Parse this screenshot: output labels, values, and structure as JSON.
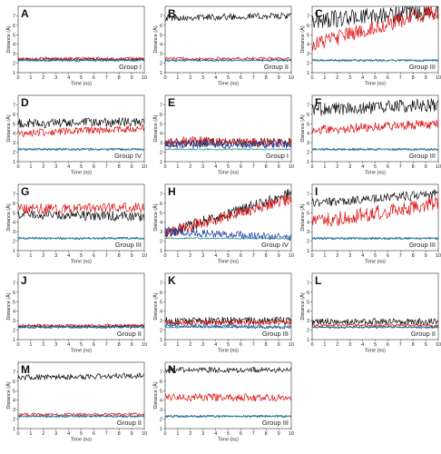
{
  "chart_data": [
    {
      "panel": "A",
      "group_label": "Group I",
      "type": "line",
      "xlabel": "Time (ns)",
      "ylabel": "Distance (Å)",
      "xlim": [
        0,
        10
      ],
      "ylim": [
        1,
        8
      ],
      "x_ticks": [
        "0",
        "1",
        "2",
        "3",
        "4",
        "5",
        "6",
        "7",
        "8",
        "9",
        "10"
      ],
      "y_ticks": [
        "1",
        "2",
        "3",
        "4",
        "5",
        "6",
        "7"
      ],
      "series": [
        {
          "color": "#111111",
          "level": [
            2.4,
            2.4
          ],
          "noise": 0.15
        },
        {
          "color": "#dd1111",
          "level": [
            2.5,
            2.5
          ],
          "noise": 0.15
        },
        {
          "color": "#1f3fa8",
          "level": [
            2.3,
            2.3
          ],
          "noise": 0.12
        },
        {
          "color": "#1a8a8a",
          "level": [
            2.3,
            2.3
          ],
          "noise": 0.08
        }
      ]
    },
    {
      "panel": "B",
      "group_label": "Group II",
      "type": "line",
      "xlabel": "Time (ns)",
      "ylabel": "Distance (Å)",
      "xlim": [
        0,
        10
      ],
      "ylim": [
        1,
        8
      ],
      "x_ticks": [
        "0",
        "1",
        "2",
        "3",
        "4",
        "5",
        "6",
        "7",
        "8",
        "9",
        "10"
      ],
      "y_ticks": [
        "1",
        "2",
        "3",
        "4",
        "5",
        "6",
        "7"
      ],
      "series": [
        {
          "color": "#111111",
          "level": [
            6.8,
            7.0
          ],
          "noise": 0.35
        },
        {
          "color": "#dd1111",
          "level": [
            2.5,
            2.5
          ],
          "noise": 0.15
        },
        {
          "color": "#1f3fa8",
          "level": [
            2.3,
            2.3
          ],
          "noise": 0.12
        },
        {
          "color": "#1a8a8a",
          "level": [
            2.3,
            2.3
          ],
          "noise": 0.08
        }
      ]
    },
    {
      "panel": "C",
      "group_label": "Group III",
      "type": "line",
      "xlabel": "Time (ns)",
      "ylabel": "Distance (Å)",
      "xlim": [
        0,
        10
      ],
      "ylim": [
        1,
        8
      ],
      "x_ticks": [
        "0",
        "1",
        "2",
        "3",
        "4",
        "5",
        "6",
        "7",
        "8",
        "9",
        "10"
      ],
      "y_ticks": [
        "1",
        "2",
        "3",
        "4",
        "5",
        "6",
        "7"
      ],
      "series": [
        {
          "color": "#111111",
          "level": [
            6.5,
            7.5
          ],
          "noise": 0.9
        },
        {
          "color": "#dd1111",
          "level": [
            4.0,
            7.5
          ],
          "noise": 0.8
        },
        {
          "color": "#1f3fa8",
          "level": [
            2.3,
            2.3
          ],
          "noise": 0.12
        },
        {
          "color": "#1a8a8a",
          "level": [
            2.3,
            2.3
          ],
          "noise": 0.08
        }
      ]
    },
    {
      "panel": "D",
      "group_label": "Group IV",
      "type": "line",
      "xlabel": "Time (ns)",
      "ylabel": "Distance (Å)",
      "xlim": [
        0,
        10
      ],
      "ylim": [
        1,
        8
      ],
      "x_ticks": [
        "0",
        "1",
        "2",
        "3",
        "4",
        "5",
        "6",
        "7",
        "8",
        "9",
        "10"
      ],
      "y_ticks": [
        "1",
        "2",
        "3",
        "4",
        "5",
        "6",
        "7"
      ],
      "series": [
        {
          "color": "#111111",
          "level": [
            5.0,
            5.2
          ],
          "noise": 0.5
        },
        {
          "color": "#dd1111",
          "level": [
            4.0,
            4.5
          ],
          "noise": 0.4
        },
        {
          "color": "#1f3fa8",
          "level": [
            2.3,
            2.3
          ],
          "noise": 0.12
        },
        {
          "color": "#1a8a8a",
          "level": [
            2.3,
            2.3
          ],
          "noise": 0.08
        }
      ]
    },
    {
      "panel": "E",
      "group_label": "Group I",
      "type": "line",
      "xlabel": "Time (ns)",
      "ylabel": "Distance (Å)",
      "xlim": [
        0,
        10
      ],
      "ylim": [
        1,
        8
      ],
      "x_ticks": [
        "0",
        "1",
        "2",
        "3",
        "4",
        "5",
        "6",
        "7",
        "8",
        "9",
        "10"
      ],
      "y_ticks": [
        "1",
        "2",
        "3",
        "4",
        "5",
        "6",
        "7"
      ],
      "series": [
        {
          "color": "#111111",
          "level": [
            3.0,
            3.0
          ],
          "noise": 0.5
        },
        {
          "color": "#dd1111",
          "level": [
            3.2,
            3.0
          ],
          "noise": 0.5
        },
        {
          "color": "#1f3fa8",
          "level": [
            2.8,
            2.8
          ],
          "noise": 0.4
        },
        {
          "color": "#1a8a8a",
          "level": [
            2.3,
            2.3
          ],
          "noise": 0.08
        }
      ]
    },
    {
      "panel": "F",
      "group_label": "Group III",
      "type": "line",
      "xlabel": "Time (ns)",
      "ylabel": "Distance (Å)",
      "xlim": [
        0,
        10
      ],
      "ylim": [
        1,
        8
      ],
      "x_ticks": [
        "0",
        "1",
        "2",
        "3",
        "4",
        "5",
        "6",
        "7",
        "8",
        "9",
        "10"
      ],
      "y_ticks": [
        "1",
        "2",
        "3",
        "4",
        "5",
        "6",
        "7"
      ],
      "series": [
        {
          "color": "#111111",
          "level": [
            6.5,
            7.0
          ],
          "noise": 0.7
        },
        {
          "color": "#dd1111",
          "level": [
            4.3,
            5.0
          ],
          "noise": 0.5
        },
        {
          "color": "#1f3fa8",
          "level": [
            2.3,
            2.3
          ],
          "noise": 0.12
        },
        {
          "color": "#1a8a8a",
          "level": [
            2.3,
            2.3
          ],
          "noise": 0.08
        }
      ]
    },
    {
      "panel": "G",
      "group_label": "Group III",
      "type": "line",
      "xlabel": "Time (ns)",
      "ylabel": "Distance (Å)",
      "xlim": [
        0,
        10
      ],
      "ylim": [
        1,
        8
      ],
      "x_ticks": [
        "0",
        "1",
        "2",
        "3",
        "4",
        "5",
        "6",
        "7",
        "8",
        "9",
        "10"
      ],
      "y_ticks": [
        "1",
        "2",
        "3",
        "4",
        "5",
        "6",
        "7"
      ],
      "series": [
        {
          "color": "#111111",
          "level": [
            4.8,
            4.6
          ],
          "noise": 0.5
        },
        {
          "color": "#dd1111",
          "level": [
            5.4,
            5.6
          ],
          "noise": 0.5
        },
        {
          "color": "#1f3fa8",
          "level": [
            2.3,
            2.3
          ],
          "noise": 0.12
        },
        {
          "color": "#1a8a8a",
          "level": [
            2.3,
            2.3
          ],
          "noise": 0.08
        }
      ]
    },
    {
      "panel": "H",
      "group_label": "Group IV",
      "type": "line",
      "xlabel": "Time (ns)",
      "ylabel": "Distance (Å)",
      "xlim": [
        0,
        10
      ],
      "ylim": [
        1,
        8
      ],
      "x_ticks": [
        "0",
        "1",
        "2",
        "3",
        "4",
        "5",
        "6",
        "7",
        "8",
        "9",
        "10"
      ],
      "y_ticks": [
        "1",
        "2",
        "3",
        "4",
        "5",
        "6",
        "7"
      ],
      "series": [
        {
          "color": "#111111",
          "level": [
            2.8,
            7.0
          ],
          "noise": 0.6
        },
        {
          "color": "#dd1111",
          "level": [
            2.8,
            6.5
          ],
          "noise": 0.6
        },
        {
          "color": "#1f3fa8",
          "level": [
            3.0,
            2.4
          ],
          "noise": 0.4
        },
        {
          "color": "#1a8a8a",
          "level": [
            2.3,
            2.3
          ],
          "noise": 0.08
        }
      ]
    },
    {
      "panel": "I",
      "group_label": "Group III",
      "type": "line",
      "xlabel": "Time (ns)",
      "ylabel": "Distance (Å)",
      "xlim": [
        0,
        10
      ],
      "ylim": [
        1,
        8
      ],
      "x_ticks": [
        "0",
        "1",
        "2",
        "3",
        "4",
        "5",
        "6",
        "7",
        "8",
        "9",
        "10"
      ],
      "y_ticks": [
        "1",
        "2",
        "3",
        "4",
        "5",
        "6",
        "7"
      ],
      "series": [
        {
          "color": "#111111",
          "level": [
            6.0,
            7.0
          ],
          "noise": 0.5
        },
        {
          "color": "#dd1111",
          "level": [
            4.0,
            6.0
          ],
          "noise": 0.8
        },
        {
          "color": "#1f3fa8",
          "level": [
            2.3,
            2.3
          ],
          "noise": 0.12
        },
        {
          "color": "#1a8a8a",
          "level": [
            2.3,
            2.3
          ],
          "noise": 0.08
        }
      ]
    },
    {
      "panel": "J",
      "group_label": "Group II",
      "type": "line",
      "xlabel": "Time (ns)",
      "ylabel": "Distance (Å)",
      "xlim": [
        0,
        10
      ],
      "ylim": [
        1,
        8
      ],
      "x_ticks": [
        "0",
        "1",
        "2",
        "3",
        "4",
        "5",
        "6",
        "7",
        "8",
        "9",
        "10"
      ],
      "y_ticks": [
        "1",
        "2",
        "3",
        "4",
        "5",
        "6",
        "7"
      ],
      "series": [
        {
          "color": "#111111",
          "level": [
            2.4,
            2.4
          ],
          "noise": 0.15
        },
        {
          "color": "#dd1111",
          "level": [
            2.5,
            2.5
          ],
          "noise": 0.15
        },
        {
          "color": "#1f3fa8",
          "level": [
            2.3,
            2.3
          ],
          "noise": 0.12
        },
        {
          "color": "#1a8a8a",
          "level": [
            2.3,
            2.3
          ],
          "noise": 0.08
        }
      ]
    },
    {
      "panel": "K",
      "group_label": "Group III",
      "type": "line",
      "xlabel": "Time (ns)",
      "ylabel": "Distance (Å)",
      "xlim": [
        0,
        10
      ],
      "ylim": [
        1,
        8
      ],
      "x_ticks": [
        "0",
        "1",
        "2",
        "3",
        "4",
        "5",
        "6",
        "7",
        "8",
        "9",
        "10"
      ],
      "y_ticks": [
        "1",
        "2",
        "3",
        "4",
        "5",
        "6",
        "7"
      ],
      "series": [
        {
          "color": "#111111",
          "level": [
            3.0,
            3.0
          ],
          "noise": 0.4
        },
        {
          "color": "#dd1111",
          "level": [
            2.8,
            2.8
          ],
          "noise": 0.3
        },
        {
          "color": "#1f3fa8",
          "level": [
            2.5,
            2.3
          ],
          "noise": 0.2
        },
        {
          "color": "#1a8a8a",
          "level": [
            2.3,
            2.3
          ],
          "noise": 0.08
        }
      ]
    },
    {
      "panel": "L",
      "group_label": "Group II",
      "type": "line",
      "xlabel": "Time (ns)",
      "ylabel": "Distance (Å)",
      "xlim": [
        0,
        10
      ],
      "ylim": [
        1,
        8
      ],
      "x_ticks": [
        "0",
        "1",
        "2",
        "3",
        "4",
        "5",
        "6",
        "7",
        "8",
        "9",
        "10"
      ],
      "y_ticks": [
        "1",
        "2",
        "3",
        "4",
        "5",
        "6",
        "7"
      ],
      "series": [
        {
          "color": "#111111",
          "level": [
            2.9,
            2.9
          ],
          "noise": 0.35
        },
        {
          "color": "#dd1111",
          "level": [
            2.5,
            2.5
          ],
          "noise": 0.15
        },
        {
          "color": "#1f3fa8",
          "level": [
            2.3,
            2.3
          ],
          "noise": 0.12
        },
        {
          "color": "#1a8a8a",
          "level": [
            2.3,
            2.3
          ],
          "noise": 0.08
        }
      ]
    },
    {
      "panel": "M",
      "group_label": "Group II",
      "type": "line",
      "xlabel": "Time (ns)",
      "ylabel": "Distance (Å)",
      "xlim": [
        0,
        10
      ],
      "ylim": [
        1,
        8
      ],
      "x_ticks": [
        "0",
        "1",
        "2",
        "3",
        "4",
        "5",
        "6",
        "7",
        "8",
        "9",
        "10"
      ],
      "y_ticks": [
        "1",
        "2",
        "3",
        "4",
        "5",
        "6",
        "7"
      ],
      "series": [
        {
          "color": "#111111",
          "level": [
            6.4,
            6.6
          ],
          "noise": 0.3
        },
        {
          "color": "#dd1111",
          "level": [
            2.5,
            2.5
          ],
          "noise": 0.15
        },
        {
          "color": "#1f3fa8",
          "level": [
            2.3,
            2.3
          ],
          "noise": 0.12
        },
        {
          "color": "#1a8a8a",
          "level": [
            2.3,
            2.3
          ],
          "noise": 0.08
        }
      ]
    },
    {
      "panel": "N",
      "group_label": "Group III",
      "type": "line",
      "xlabel": "Time (ns)",
      "ylabel": "Distance (Å)",
      "xlim": [
        0,
        10
      ],
      "ylim": [
        1,
        8
      ],
      "x_ticks": [
        "0",
        "1",
        "2",
        "3",
        "4",
        "5",
        "6",
        "7",
        "8",
        "9",
        "10"
      ],
      "y_ticks": [
        "1",
        "2",
        "3",
        "4",
        "5",
        "6",
        "7"
      ],
      "series": [
        {
          "color": "#111111",
          "level": [
            7.2,
            7.2
          ],
          "noise": 0.3
        },
        {
          "color": "#dd1111",
          "level": [
            4.3,
            4.3
          ],
          "noise": 0.4
        },
        {
          "color": "#1f3fa8",
          "level": [
            2.3,
            2.3
          ],
          "noise": 0.12
        },
        {
          "color": "#1a8a8a",
          "level": [
            2.3,
            2.3
          ],
          "noise": 0.08
        }
      ]
    }
  ]
}
